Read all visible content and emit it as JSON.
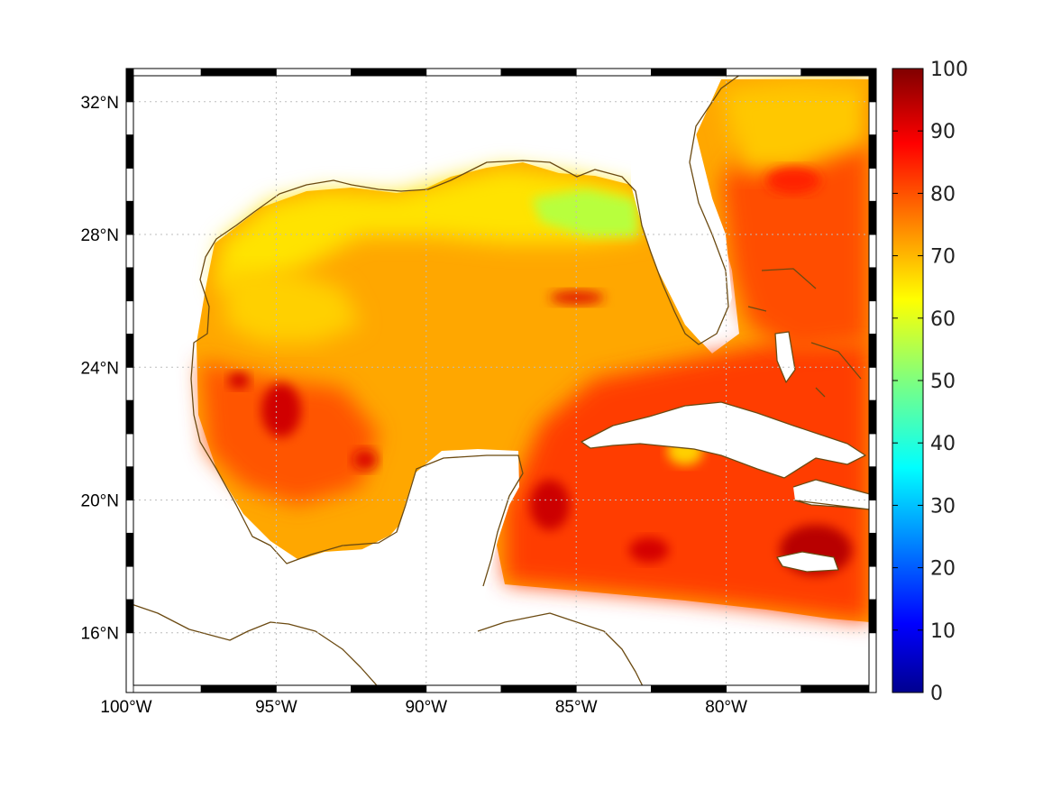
{
  "map": {
    "projection": "equirectangular",
    "lon_range": [
      -100,
      -75
    ],
    "lat_range": [
      14.2,
      33
    ],
    "lon_ticks": [
      {
        "lon": -100,
        "label": "100°W"
      },
      {
        "lon": -95,
        "label": "95°W"
      },
      {
        "lon": -90,
        "label": "90°W"
      },
      {
        "lon": -85,
        "label": "85°W"
      },
      {
        "lon": -80,
        "label": "80°W"
      }
    ],
    "lat_ticks": [
      {
        "lat": 16,
        "label": "16°N"
      },
      {
        "lat": 20,
        "label": "20°N"
      },
      {
        "lat": 24,
        "label": "24°N"
      },
      {
        "lat": 28,
        "label": "28°N"
      },
      {
        "lat": 32,
        "label": "32°N"
      }
    ],
    "grid": true,
    "frame_style": "alternating black/white border",
    "coastline_color": "#6b4a12",
    "land_color": "#ffffff"
  },
  "colorbar": {
    "colormap": "jet",
    "range": [
      0,
      100
    ],
    "ticks": [
      "0",
      "10",
      "20",
      "30",
      "40",
      "50",
      "60",
      "70",
      "80",
      "90",
      "100"
    ],
    "placement": "right"
  },
  "field": {
    "typical_range": [
      60,
      95
    ],
    "regions": [
      {
        "area": "northern Gulf shelf",
        "value_approx": 62
      },
      {
        "area": "central Gulf",
        "value_approx": 75
      },
      {
        "area": "Caribbean / south",
        "value_approx": 85
      },
      {
        "area": "Atlantic east of Florida",
        "value_approx": 78
      },
      {
        "area": "south of Jamaica",
        "value_approx": 95
      }
    ]
  }
}
